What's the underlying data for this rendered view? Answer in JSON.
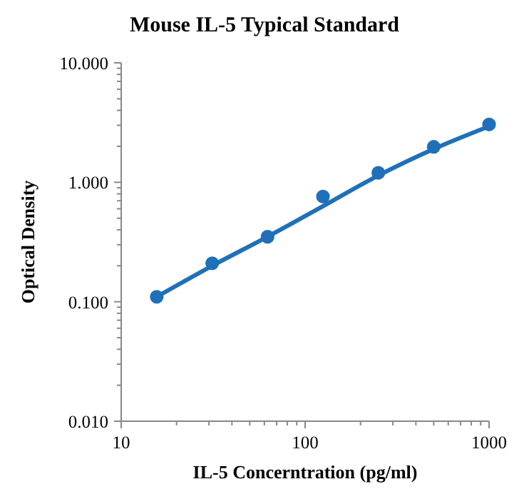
{
  "chart_data": {
    "type": "scatter",
    "title": "Mouse IL-5 Typical Standard",
    "xlabel": "IL-5 Concerntration (pg/ml)",
    "ylabel": "Optical Density",
    "log": "xy",
    "grid": false,
    "xlim": [
      10,
      1000
    ],
    "ylim": [
      0.01,
      10
    ],
    "xticks": [
      10,
      {
        "value": 20,
        "label": null
      },
      {
        "value": 30,
        "label": null
      },
      {
        "value": 40,
        "label": null
      },
      {
        "value": 50,
        "label": null
      },
      {
        "value": 60,
        "label": null
      },
      {
        "value": 70,
        "label": null
      },
      {
        "value": 80,
        "label": null
      },
      {
        "value": 90,
        "label": null
      },
      100,
      {
        "value": 200,
        "label": null
      },
      {
        "value": 300,
        "label": null
      },
      {
        "value": 400,
        "label": null
      },
      {
        "value": 500,
        "label": null
      },
      {
        "value": 600,
        "label": null
      },
      {
        "value": 700,
        "label": null
      },
      {
        "value": 800,
        "label": null
      },
      {
        "value": 900,
        "label": null
      },
      1000
    ],
    "yticks": [
      {
        "value": 0.01,
        "label": "0.010"
      },
      {
        "value": 0.02,
        "label": null
      },
      {
        "value": 0.03,
        "label": null
      },
      {
        "value": 0.04,
        "label": null
      },
      {
        "value": 0.05,
        "label": null
      },
      {
        "value": 0.06,
        "label": null
      },
      {
        "value": 0.07,
        "label": null
      },
      {
        "value": 0.08,
        "label": null
      },
      {
        "value": 0.09,
        "label": null
      },
      {
        "value": 0.1,
        "label": "0.100"
      },
      {
        "value": 0.2,
        "label": null
      },
      {
        "value": 0.3,
        "label": null
      },
      {
        "value": 0.4,
        "label": null
      },
      {
        "value": 0.5,
        "label": null
      },
      {
        "value": 0.6,
        "label": null
      },
      {
        "value": 0.7,
        "label": null
      },
      {
        "value": 0.8,
        "label": null
      },
      {
        "value": 0.9,
        "label": null
      },
      {
        "value": 1,
        "label": "1.000"
      },
      {
        "value": 2,
        "label": null
      },
      {
        "value": 3,
        "label": null
      },
      {
        "value": 4,
        "label": null
      },
      {
        "value": 5,
        "label": null
      },
      {
        "value": 6,
        "label": null
      },
      {
        "value": 7,
        "label": null
      },
      {
        "value": 8,
        "label": null
      },
      {
        "value": 9,
        "label": null
      },
      {
        "value": 10,
        "label": "10.000"
      }
    ],
    "series": [
      {
        "color": "#1f70b8",
        "marker": "circle",
        "x": [
          15.6,
          31.25,
          62.5,
          125,
          250,
          500,
          1000
        ],
        "values": [
          0.11,
          0.21,
          0.35,
          0.76,
          1.2,
          1.98,
          3.05
        ]
      },
      {
        "type": "line",
        "color": "#1f70b8",
        "marker": "none",
        "line_style": "solid",
        "x": [
          15.6,
          31.25,
          62.5,
          125,
          250,
          500,
          1000
        ],
        "values": [
          0.11,
          0.2,
          0.35,
          0.63,
          1.14,
          1.9,
          2.94
        ]
      }
    ]
  }
}
